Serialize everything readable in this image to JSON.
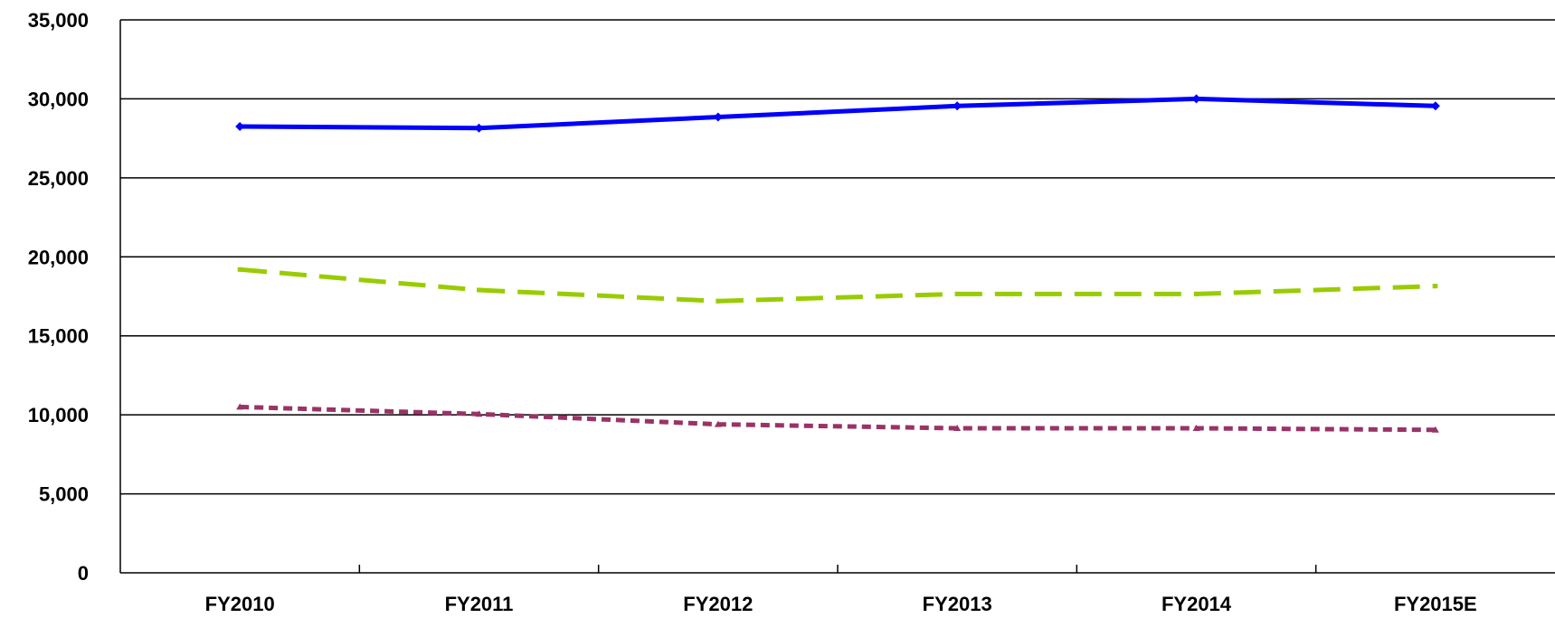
{
  "chart_data": {
    "type": "line",
    "title": "",
    "xlabel": "",
    "ylabel": "",
    "categories": [
      "FY2010",
      "FY2011",
      "FY2012",
      "FY2013",
      "FY2014",
      "FY2015E"
    ],
    "ylim": [
      0,
      35000
    ],
    "yticks": [
      0,
      5000,
      10000,
      15000,
      20000,
      25000,
      30000,
      35000
    ],
    "ytick_labels": [
      "0",
      "5,000",
      "10,000",
      "15,000",
      "20,000",
      "25,000",
      "30,000",
      "35,000"
    ],
    "grid": true,
    "legend": "none",
    "series": [
      {
        "values": [
          28250,
          28150,
          28850,
          29550,
          30000,
          29550
        ],
        "color": "#0000ff",
        "style": "solid",
        "marker": "diamond"
      },
      {
        "values": [
          19200,
          17900,
          17200,
          17650,
          17650,
          18150
        ],
        "color": "#99cc00",
        "style": "dashed",
        "marker": "square"
      },
      {
        "values": [
          10500,
          10050,
          9400,
          9150,
          9150,
          9050
        ],
        "color": "#993366",
        "style": "dotted",
        "marker": "triangle"
      }
    ]
  }
}
